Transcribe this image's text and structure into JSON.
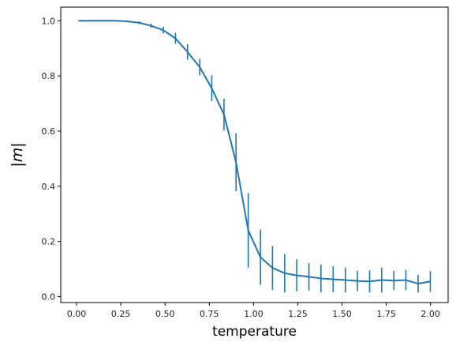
{
  "chart_data": {
    "type": "line",
    "title": "",
    "xlabel": "temperature",
    "ylabel": "|m|",
    "xlim": [
      -0.0895,
      2.0995
    ],
    "ylim": [
      -0.0215,
      1.0495
    ],
    "xticks": [
      0.0,
      0.25,
      0.5,
      0.75,
      1.0,
      1.25,
      1.5,
      1.75,
      2.0
    ],
    "xtick_labels": [
      "0.00",
      "0.25",
      "0.50",
      "0.75",
      "1.00",
      "1.25",
      "1.50",
      "1.75",
      "2.00"
    ],
    "yticks": [
      0.0,
      0.2,
      0.4,
      0.6,
      0.8,
      1.0
    ],
    "ytick_labels": [
      "0.0",
      "0.2",
      "0.4",
      "0.6",
      "0.8",
      "1.0"
    ],
    "grid": false,
    "legend": "none",
    "series": [
      {
        "color": "#1f77b4",
        "x": [
          0.01,
          0.079,
          0.147,
          0.216,
          0.284,
          0.353,
          0.421,
          0.49,
          0.559,
          0.627,
          0.696,
          0.764,
          0.833,
          0.901,
          0.97,
          1.039,
          1.107,
          1.176,
          1.244,
          1.313,
          1.381,
          1.45,
          1.519,
          1.587,
          1.656,
          1.724,
          1.793,
          1.861,
          1.93,
          1.999
        ],
        "y": [
          1.0,
          1.0,
          1.0,
          1.0,
          0.998,
          0.993,
          0.982,
          0.966,
          0.936,
          0.887,
          0.832,
          0.755,
          0.66,
          0.487,
          0.24,
          0.143,
          0.104,
          0.085,
          0.077,
          0.072,
          0.066,
          0.063,
          0.06,
          0.057,
          0.055,
          0.06,
          0.058,
          0.06,
          0.047,
          0.055
        ],
        "yerr": [
          0.0,
          0.0,
          0.0,
          0.0,
          0.002,
          0.005,
          0.007,
          0.012,
          0.02,
          0.028,
          0.03,
          0.047,
          0.057,
          0.105,
          0.135,
          0.1,
          0.08,
          0.07,
          0.058,
          0.05,
          0.05,
          0.047,
          0.045,
          0.037,
          0.04,
          0.045,
          0.035,
          0.037,
          0.032,
          0.037
        ]
      }
    ]
  }
}
